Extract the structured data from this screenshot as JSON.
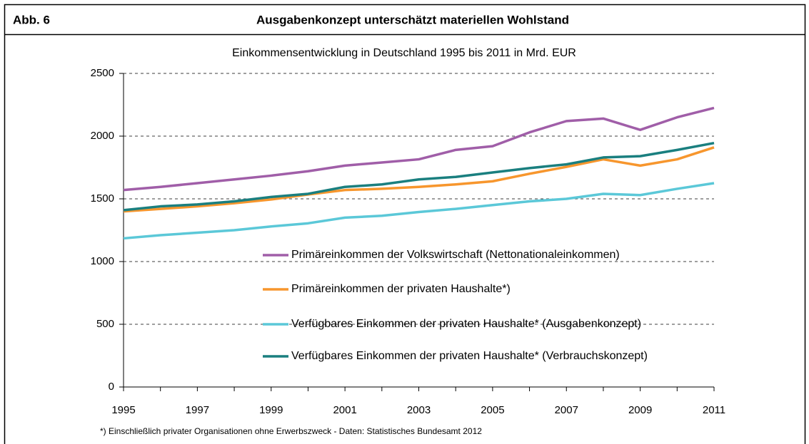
{
  "chart_data": {
    "type": "line",
    "label": "Abb. 6",
    "title": "Ausgabenkonzept unterschätzt materiellen Wohlstand",
    "subtitle": "Einkommensentwicklung in Deutschland 1995 bis 2011 in Mrd. EUR",
    "footnote": "*) Einschließlich privater Organisationen ohne Erwerbszweck - Daten:  Statistisches Bundesamt 2012",
    "categories": [
      "1995",
      null,
      "1997",
      null,
      "1999",
      null,
      "2001",
      null,
      "2003",
      null,
      "2005",
      null,
      "2007",
      null,
      "2009",
      null,
      "2011"
    ],
    "ylim": [
      0,
      2500
    ],
    "yticks": [
      0,
      500,
      1000,
      1500,
      2000,
      2500
    ],
    "grid": true,
    "series": [
      {
        "name": "Primäreinkommen der Volkswirtschaft (Nettonationaleinkommen)",
        "color": "#a05ea8",
        "values": [
          1570,
          1595,
          1625,
          1655,
          1685,
          1720,
          1765,
          1790,
          1815,
          1890,
          1920,
          2030,
          2120,
          2140,
          2050,
          2150,
          2225
        ]
      },
      {
        "name": "Primäreinkommen der privaten Haushalte*)",
        "color": "#f7962d",
        "values": [
          1400,
          1420,
          1440,
          1465,
          1495,
          1535,
          1570,
          1580,
          1595,
          1615,
          1640,
          1700,
          1755,
          1815,
          1765,
          1815,
          1910
        ]
      },
      {
        "name": "Verfügbares Einkommen der privaten Haushalte* (Ausgabenkonzept)",
        "color": "#5bc8d8",
        "values": [
          1185,
          1210,
          1230,
          1250,
          1280,
          1305,
          1350,
          1365,
          1395,
          1420,
          1450,
          1480,
          1500,
          1540,
          1530,
          1580,
          1625
        ]
      },
      {
        "name": "Verfügbares Einkommen der privaten Haushalte* (Verbrauchskonzept)",
        "color": "#1a7f7f",
        "values": [
          1410,
          1440,
          1455,
          1480,
          1515,
          1540,
          1595,
          1615,
          1655,
          1675,
          1710,
          1745,
          1775,
          1830,
          1840,
          1890,
          1945
        ]
      }
    ]
  }
}
